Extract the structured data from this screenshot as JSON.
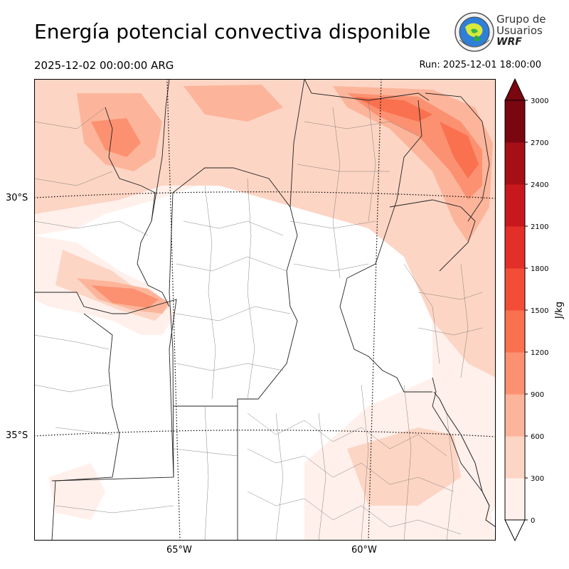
{
  "header": {
    "title": "Energía potencial convectiva disponible",
    "valid_time": "2025-12-02 00:00:00 ARG",
    "run_time": "Run: 2025-12-01 18:00:00"
  },
  "logo": {
    "line1": "Grupo de",
    "line2": "Usuarios",
    "line3": "WRF"
  },
  "map": {
    "lat_labels": [
      "30°S",
      "35°S"
    ],
    "lon_labels": [
      "65°W",
      "60°W"
    ]
  },
  "colorbar": {
    "unit": "J/kg",
    "ticks": [
      "0",
      "300",
      "600",
      "900",
      "1200",
      "1500",
      "1800",
      "2100",
      "2400",
      "2700",
      "3000"
    ],
    "colors": [
      "#fff0eb",
      "#fdd5c4",
      "#fcb59b",
      "#fc9171",
      "#f9714f",
      "#f34d38",
      "#e32f27",
      "#c9181d",
      "#a60f15",
      "#7a0610"
    ]
  }
}
